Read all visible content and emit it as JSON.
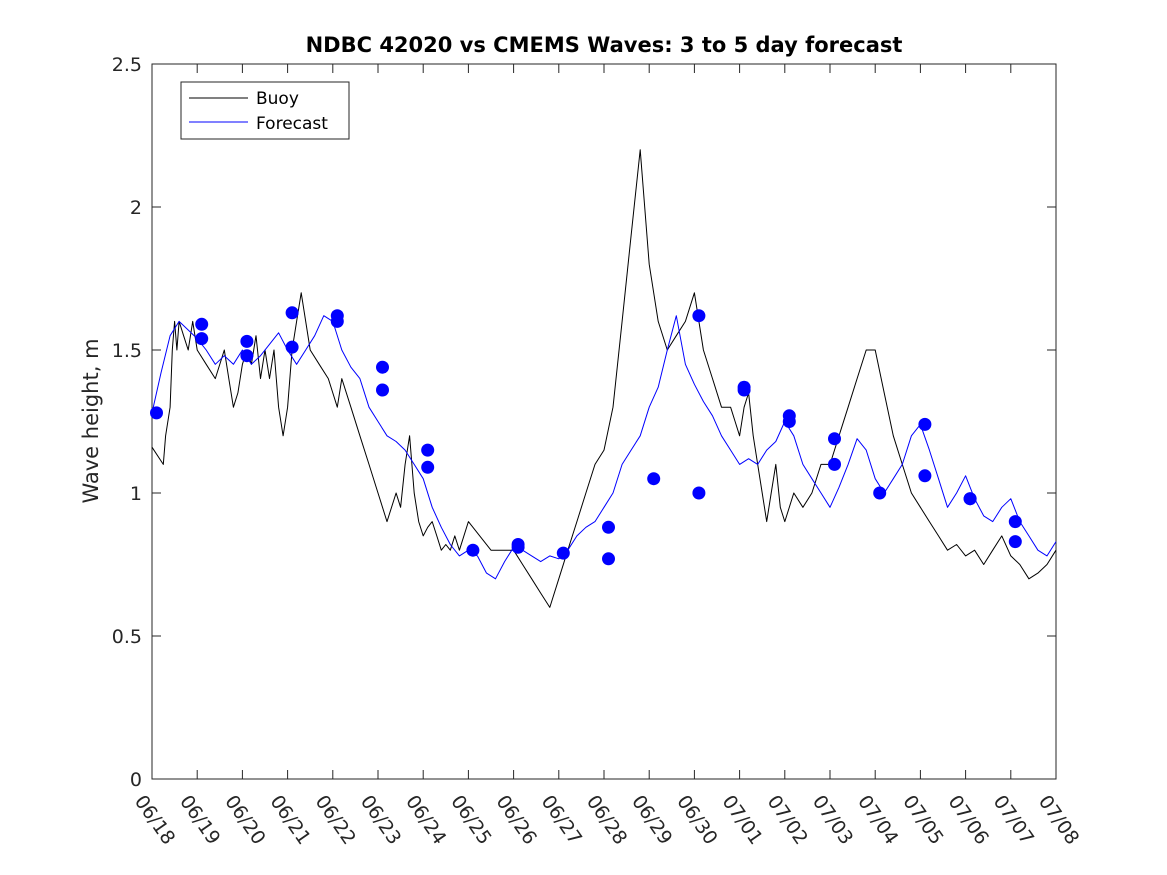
{
  "chart_data": {
    "type": "line",
    "title": "NDBC 42020 vs CMEMS Waves: 3 to 5 day forecast",
    "xlabel": "",
    "ylabel": "Wave height, m",
    "xlim": [
      "06/18",
      "07/08"
    ],
    "ylim": [
      0,
      2.5
    ],
    "x_tick_labels": [
      "06/18",
      "06/19",
      "06/20",
      "06/21",
      "06/22",
      "06/23",
      "06/24",
      "06/25",
      "06/26",
      "06/27",
      "06/28",
      "06/29",
      "06/30",
      "07/01",
      "07/02",
      "07/03",
      "07/04",
      "07/05",
      "07/06",
      "07/07",
      "07/08"
    ],
    "y_ticks": [
      0,
      0.5,
      1,
      1.5,
      2,
      2.5
    ],
    "y_tick_labels": [
      "0",
      "0.5",
      "1",
      "1.5",
      "2",
      "2.5"
    ],
    "grid": false,
    "legend": {
      "position": "top-left",
      "entries": [
        "Buoy",
        "Forecast"
      ]
    },
    "colors": {
      "buoy": "#000000",
      "forecast": "#0000ff",
      "markers": "#0000ff"
    },
    "series": [
      {
        "name": "Buoy",
        "x_days": [
          0.0,
          0.25,
          0.3,
          0.4,
          0.45,
          0.5,
          0.55,
          0.6,
          0.7,
          0.8,
          0.9,
          1.0,
          1.2,
          1.4,
          1.6,
          1.7,
          1.8,
          1.9,
          2.0,
          2.1,
          2.2,
          2.3,
          2.4,
          2.5,
          2.6,
          2.7,
          2.8,
          2.9,
          3.0,
          3.1,
          3.2,
          3.3,
          3.5,
          3.7,
          3.9,
          4.0,
          4.1,
          4.2,
          4.4,
          4.6,
          4.8,
          5.0,
          5.2,
          5.4,
          5.5,
          5.6,
          5.7,
          5.8,
          5.9,
          6.0,
          6.1,
          6.2,
          6.3,
          6.4,
          6.5,
          6.6,
          6.7,
          6.8,
          7.0,
          7.5,
          8.0,
          8.2,
          8.4,
          8.6,
          8.8,
          9.0,
          9.2,
          9.4,
          9.6,
          9.8,
          10.0,
          10.2,
          10.4,
          10.6,
          10.8,
          11.0,
          11.2,
          11.4,
          11.6,
          11.8,
          12.0,
          12.2,
          12.4,
          12.6,
          12.8,
          12.9,
          13.0,
          13.1,
          13.2,
          13.3,
          13.4,
          13.5,
          13.6,
          13.7,
          13.8,
          13.9,
          14.0,
          14.2,
          14.4,
          14.6,
          14.8,
          15.0,
          15.2,
          15.4,
          15.6,
          15.8,
          16.0,
          16.2,
          16.4,
          16.6,
          16.8,
          17.0,
          17.2,
          17.4,
          17.6,
          17.8,
          18.0,
          18.2,
          18.4,
          18.6,
          18.8,
          19.0,
          19.2,
          19.4,
          19.6,
          19.8,
          20.0
        ],
        "y": [
          1.16,
          1.1,
          1.2,
          1.3,
          1.5,
          1.6,
          1.5,
          1.6,
          1.55,
          1.5,
          1.6,
          1.5,
          1.45,
          1.4,
          1.5,
          1.4,
          1.3,
          1.35,
          1.45,
          1.5,
          1.45,
          1.55,
          1.4,
          1.5,
          1.4,
          1.5,
          1.3,
          1.2,
          1.3,
          1.5,
          1.6,
          1.7,
          1.5,
          1.45,
          1.4,
          1.35,
          1.3,
          1.4,
          1.3,
          1.2,
          1.1,
          1.0,
          0.9,
          1.0,
          0.95,
          1.1,
          1.2,
          1.0,
          0.9,
          0.85,
          0.88,
          0.9,
          0.85,
          0.8,
          0.82,
          0.8,
          0.85,
          0.8,
          0.9,
          0.8,
          0.8,
          0.75,
          0.7,
          0.65,
          0.6,
          0.7,
          0.8,
          0.9,
          1.0,
          1.1,
          1.15,
          1.3,
          1.6,
          1.9,
          2.2,
          1.8,
          1.6,
          1.5,
          1.55,
          1.6,
          1.7,
          1.5,
          1.4,
          1.3,
          1.3,
          1.25,
          1.2,
          1.3,
          1.35,
          1.2,
          1.1,
          1.0,
          0.9,
          1.0,
          1.1,
          0.95,
          0.9,
          1.0,
          0.95,
          1.0,
          1.1,
          1.1,
          1.2,
          1.3,
          1.4,
          1.5,
          1.5,
          1.35,
          1.2,
          1.1,
          1.0,
          0.95,
          0.9,
          0.85,
          0.8,
          0.82,
          0.78,
          0.8,
          0.75,
          0.8,
          0.85,
          0.78,
          0.75,
          0.7,
          0.72,
          0.75,
          0.8
        ]
      },
      {
        "name": "Forecast",
        "x_days": [
          0.0,
          0.2,
          0.4,
          0.6,
          0.8,
          1.0,
          1.2,
          1.4,
          1.6,
          1.8,
          2.0,
          2.2,
          2.4,
          2.6,
          2.8,
          3.0,
          3.2,
          3.4,
          3.6,
          3.8,
          4.0,
          4.2,
          4.4,
          4.6,
          4.8,
          5.0,
          5.2,
          5.4,
          5.6,
          5.8,
          6.0,
          6.2,
          6.4,
          6.6,
          6.8,
          7.0,
          7.2,
          7.4,
          7.6,
          7.8,
          8.0,
          8.2,
          8.4,
          8.6,
          8.8,
          9.0,
          9.2,
          9.4,
          9.6,
          9.8,
          10.0,
          10.2,
          10.4,
          10.6,
          10.8,
          11.0,
          11.2,
          11.4,
          11.6,
          11.8,
          12.0,
          12.2,
          12.4,
          12.6,
          12.8,
          13.0,
          13.2,
          13.4,
          13.6,
          13.8,
          14.0,
          14.2,
          14.4,
          14.6,
          14.8,
          15.0,
          15.2,
          15.4,
          15.6,
          15.8,
          16.0,
          16.2,
          16.4,
          16.6,
          16.8,
          17.0,
          17.2,
          17.4,
          17.6,
          17.8,
          18.0,
          18.2,
          18.4,
          18.6,
          18.8,
          19.0,
          19.2,
          19.4,
          19.6,
          19.8,
          20.0
        ],
        "y": [
          1.28,
          1.42,
          1.55,
          1.6,
          1.57,
          1.54,
          1.5,
          1.45,
          1.48,
          1.45,
          1.5,
          1.45,
          1.48,
          1.52,
          1.56,
          1.5,
          1.45,
          1.5,
          1.55,
          1.62,
          1.6,
          1.5,
          1.44,
          1.4,
          1.3,
          1.25,
          1.2,
          1.18,
          1.15,
          1.1,
          1.05,
          0.95,
          0.88,
          0.82,
          0.78,
          0.8,
          0.78,
          0.72,
          0.7,
          0.76,
          0.81,
          0.8,
          0.78,
          0.76,
          0.78,
          0.77,
          0.8,
          0.85,
          0.88,
          0.9,
          0.95,
          1.0,
          1.1,
          1.15,
          1.2,
          1.3,
          1.37,
          1.5,
          1.62,
          1.45,
          1.38,
          1.32,
          1.27,
          1.2,
          1.15,
          1.1,
          1.12,
          1.1,
          1.15,
          1.18,
          1.25,
          1.2,
          1.1,
          1.05,
          1.0,
          0.95,
          1.02,
          1.1,
          1.19,
          1.15,
          1.05,
          1.0,
          1.05,
          1.1,
          1.2,
          1.24,
          1.15,
          1.05,
          0.95,
          1.0,
          1.06,
          0.98,
          0.92,
          0.9,
          0.95,
          0.98,
          0.9,
          0.85,
          0.8,
          0.78,
          0.83
        ]
      }
    ],
    "forecast_markers": {
      "x_days": [
        0.1,
        1.1,
        1.1,
        2.1,
        2.1,
        3.1,
        3.1,
        4.1,
        4.1,
        5.1,
        5.1,
        6.1,
        6.1,
        7.1,
        8.1,
        8.1,
        9.1,
        10.1,
        10.1,
        11.1,
        12.1,
        12.1,
        13.1,
        13.1,
        14.1,
        14.1,
        15.1,
        15.1,
        16.1,
        17.1,
        17.1,
        18.1,
        18.1,
        19.1,
        19.1
      ],
      "y": [
        1.28,
        1.59,
        1.54,
        1.53,
        1.48,
        1.63,
        1.51,
        1.62,
        1.6,
        1.44,
        1.36,
        1.15,
        1.09,
        0.8,
        0.81,
        0.82,
        0.79,
        0.77,
        0.88,
        1.05,
        1.0,
        1.62,
        1.37,
        1.36,
        1.27,
        1.25,
        1.1,
        1.19,
        1.0,
        1.24,
        1.06,
        0.98,
        0.98,
        0.9,
        0.83
      ]
    }
  }
}
